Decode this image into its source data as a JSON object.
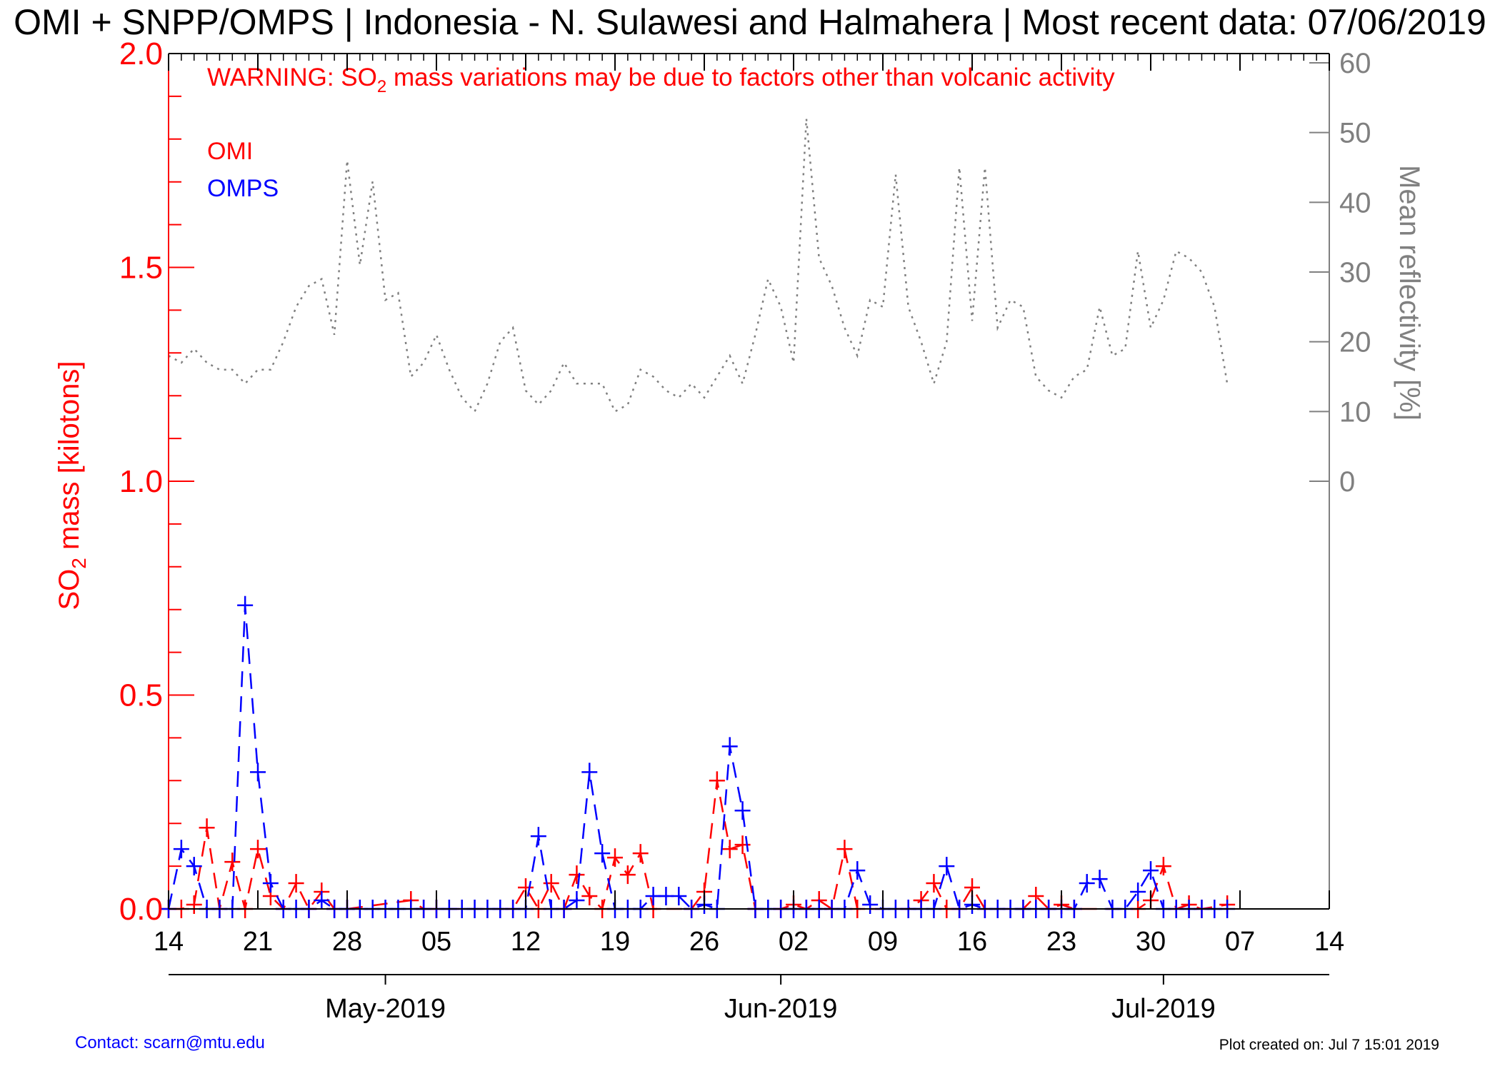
{
  "chart_data": {
    "type": "line",
    "title": "OMI + SNPP/OMPS | Indonesia - N. Sulawesi and Halmahera | Most recent data: 07/06/2019",
    "warning": {
      "prefix": "WARNING: SO",
      "subscript": "2",
      "suffix": " mass variations may be due to factors other than volcanic activity"
    },
    "left_axis": {
      "label_prefix": "SO",
      "label_subscript": "2",
      "label_suffix": " mass [kilotons]",
      "ylim": [
        0,
        2.0
      ],
      "tick_values": [
        0,
        0.5,
        1.0,
        1.5,
        2.0
      ],
      "tick_labels": [
        "0.0",
        "0.5",
        "1.0",
        "1.5",
        "2.0"
      ],
      "color": "#ff0000"
    },
    "right_axis": {
      "label": "Mean reflectivity [%]",
      "tick_values": [
        0,
        10,
        20,
        30,
        40,
        50,
        60
      ],
      "tick_labels": [
        "0",
        "10",
        "20",
        "30",
        "40",
        "50",
        "60"
      ],
      "color": "#808080"
    },
    "x_axis": {
      "start": "2019-04-14",
      "end": "2019-07-14",
      "tick_dates": [
        "2019-04-14",
        "2019-04-21",
        "2019-04-28",
        "2019-05-05",
        "2019-05-12",
        "2019-05-19",
        "2019-05-26",
        "2019-06-02",
        "2019-06-09",
        "2019-06-16",
        "2019-06-23",
        "2019-06-30",
        "2019-07-07",
        "2019-07-14"
      ],
      "tick_labels": [
        "14",
        "21",
        "28",
        "05",
        "12",
        "19",
        "26",
        "02",
        "09",
        "16",
        "23",
        "30",
        "07",
        "14"
      ],
      "month_tick_dates": [
        "2019-05-01",
        "2019-06-01",
        "2019-07-01"
      ],
      "month_labels": [
        "May-2019",
        "Jun-2019",
        "Jul-2019"
      ]
    },
    "legend": {
      "position": "top-left",
      "entries": [
        {
          "label": "OMI",
          "color": "#ff0000"
        },
        {
          "label": "OMPS",
          "color": "#0000ff"
        }
      ]
    },
    "series": [
      {
        "name": "OMI",
        "axis": "left",
        "color": "#ff0000",
        "style": "dashed",
        "marker": "plus",
        "points": [
          [
            "2019-04-14",
            0
          ],
          [
            "2019-04-15",
            0
          ],
          [
            "2019-04-16",
            0.01
          ],
          [
            "2019-04-17",
            0.19
          ],
          [
            "2019-04-18",
            0
          ],
          [
            "2019-04-19",
            0.11
          ],
          [
            "2019-04-20",
            0
          ],
          [
            "2019-04-21",
            0.14
          ],
          [
            "2019-04-22",
            0.03
          ],
          [
            "2019-04-23",
            0
          ],
          [
            "2019-04-24",
            0.06
          ],
          [
            "2019-04-25",
            0
          ],
          [
            "2019-04-26",
            0.04
          ],
          [
            "2019-04-27",
            0
          ],
          [
            "2019-04-28",
            0
          ],
          [
            "2019-05-03",
            0.02
          ],
          [
            "2019-05-04",
            0
          ],
          [
            "2019-05-05",
            0
          ],
          [
            "2019-05-11",
            0
          ],
          [
            "2019-05-12",
            0.05
          ],
          [
            "2019-05-13",
            0
          ],
          [
            "2019-05-14",
            0.06
          ],
          [
            "2019-05-15",
            0
          ],
          [
            "2019-05-16",
            0.08
          ],
          [
            "2019-05-17",
            0.03
          ],
          [
            "2019-05-18",
            0
          ],
          [
            "2019-05-19",
            0.12
          ],
          [
            "2019-05-20",
            0.08
          ],
          [
            "2019-05-21",
            0.13
          ],
          [
            "2019-05-22",
            0
          ],
          [
            "2019-05-25",
            0
          ],
          [
            "2019-05-26",
            0.04
          ],
          [
            "2019-05-27",
            0.3
          ],
          [
            "2019-05-28",
            0.14
          ],
          [
            "2019-05-29",
            0.15
          ],
          [
            "2019-05-30",
            0
          ],
          [
            "2019-06-01",
            0
          ],
          [
            "2019-06-02",
            0.01
          ],
          [
            "2019-06-03",
            0
          ],
          [
            "2019-06-04",
            0.02
          ],
          [
            "2019-06-05",
            0
          ],
          [
            "2019-06-06",
            0.14
          ],
          [
            "2019-06-07",
            0
          ],
          [
            "2019-06-11",
            0
          ],
          [
            "2019-06-12",
            0.02
          ],
          [
            "2019-06-13",
            0.06
          ],
          [
            "2019-06-14",
            0
          ],
          [
            "2019-06-15",
            0
          ],
          [
            "2019-06-16",
            0.05
          ],
          [
            "2019-06-17",
            0
          ],
          [
            "2019-06-20",
            0
          ],
          [
            "2019-06-21",
            0.03
          ],
          [
            "2019-06-22",
            0
          ],
          [
            "2019-06-23",
            0.01
          ],
          [
            "2019-06-24",
            0
          ],
          [
            "2019-06-29",
            0
          ],
          [
            "2019-06-30",
            0.02
          ],
          [
            "2019-07-01",
            0.1
          ],
          [
            "2019-07-02",
            0
          ],
          [
            "2019-07-03",
            0.01
          ],
          [
            "2019-07-04",
            0
          ],
          [
            "2019-07-06",
            0.01
          ]
        ]
      },
      {
        "name": "OMPS",
        "axis": "left",
        "color": "#0000ff",
        "style": "dashed",
        "marker": "plus",
        "points": [
          [
            "2019-04-14",
            0
          ],
          [
            "2019-04-15",
            0.14
          ],
          [
            "2019-04-16",
            0.1
          ],
          [
            "2019-04-17",
            0
          ],
          [
            "2019-04-18",
            0
          ],
          [
            "2019-04-19",
            0
          ],
          [
            "2019-04-20",
            0.71
          ],
          [
            "2019-04-21",
            0.32
          ],
          [
            "2019-04-22",
            0.06
          ],
          [
            "2019-04-23",
            0
          ],
          [
            "2019-04-24",
            0
          ],
          [
            "2019-04-25",
            0
          ],
          [
            "2019-04-26",
            0.02
          ],
          [
            "2019-04-27",
            0
          ],
          [
            "2019-04-28",
            0
          ],
          [
            "2019-04-29",
            0
          ],
          [
            "2019-04-30",
            0
          ],
          [
            "2019-05-01",
            0
          ],
          [
            "2019-05-02",
            0
          ],
          [
            "2019-05-03",
            0
          ],
          [
            "2019-05-04",
            0
          ],
          [
            "2019-05-05",
            0
          ],
          [
            "2019-05-06",
            0
          ],
          [
            "2019-05-07",
            0
          ],
          [
            "2019-05-08",
            0
          ],
          [
            "2019-05-09",
            0
          ],
          [
            "2019-05-10",
            0
          ],
          [
            "2019-05-11",
            0
          ],
          [
            "2019-05-12",
            0
          ],
          [
            "2019-05-13",
            0.17
          ],
          [
            "2019-05-14",
            0
          ],
          [
            "2019-05-15",
            0
          ],
          [
            "2019-05-16",
            0.02
          ],
          [
            "2019-05-17",
            0.32
          ],
          [
            "2019-05-18",
            0.13
          ],
          [
            "2019-05-19",
            0
          ],
          [
            "2019-05-20",
            0
          ],
          [
            "2019-05-21",
            0
          ],
          [
            "2019-05-22",
            0.03
          ],
          [
            "2019-05-23",
            0.03
          ],
          [
            "2019-05-24",
            0.03
          ],
          [
            "2019-05-25",
            0
          ],
          [
            "2019-05-26",
            0.01
          ],
          [
            "2019-05-27",
            0
          ],
          [
            "2019-05-28",
            0.38
          ],
          [
            "2019-05-29",
            0.23
          ],
          [
            "2019-05-30",
            0
          ],
          [
            "2019-05-31",
            0
          ],
          [
            "2019-06-01",
            0
          ],
          [
            "2019-06-02",
            0
          ],
          [
            "2019-06-03",
            0
          ],
          [
            "2019-06-04",
            0
          ],
          [
            "2019-06-05",
            0
          ],
          [
            "2019-06-06",
            0
          ],
          [
            "2019-06-07",
            0.09
          ],
          [
            "2019-06-08",
            0.01
          ],
          [
            "2019-06-09",
            0
          ],
          [
            "2019-06-10",
            0
          ],
          [
            "2019-06-11",
            0
          ],
          [
            "2019-06-12",
            0
          ],
          [
            "2019-06-13",
            0
          ],
          [
            "2019-06-14",
            0.1
          ],
          [
            "2019-06-15",
            0
          ],
          [
            "2019-06-16",
            0.01
          ],
          [
            "2019-06-17",
            0
          ],
          [
            "2019-06-18",
            0
          ],
          [
            "2019-06-19",
            0
          ],
          [
            "2019-06-20",
            0
          ],
          [
            "2019-06-21",
            0
          ],
          [
            "2019-06-22",
            0
          ],
          [
            "2019-06-23",
            0
          ],
          [
            "2019-06-24",
            0
          ],
          [
            "2019-06-25",
            0.06
          ],
          [
            "2019-06-26",
            0.07
          ],
          [
            "2019-06-27",
            0
          ],
          [
            "2019-06-28",
            0
          ],
          [
            "2019-06-29",
            0.04
          ],
          [
            "2019-06-30",
            0.09
          ],
          [
            "2019-07-01",
            0
          ],
          [
            "2019-07-02",
            0
          ],
          [
            "2019-07-03",
            0
          ],
          [
            "2019-07-04",
            0
          ],
          [
            "2019-07-05",
            0
          ],
          [
            "2019-07-06",
            0
          ]
        ]
      },
      {
        "name": "Mean reflectivity",
        "axis": "right",
        "color": "#808080",
        "style": "dotted",
        "marker": "none",
        "points": [
          [
            "2019-04-14",
            18
          ],
          [
            "2019-04-15",
            17
          ],
          [
            "2019-04-16",
            19
          ],
          [
            "2019-04-17",
            17
          ],
          [
            "2019-04-18",
            16
          ],
          [
            "2019-04-19",
            16
          ],
          [
            "2019-04-20",
            14
          ],
          [
            "2019-04-21",
            16
          ],
          [
            "2019-04-22",
            16
          ],
          [
            "2019-04-23",
            20
          ],
          [
            "2019-04-24",
            25
          ],
          [
            "2019-04-25",
            28
          ],
          [
            "2019-04-26",
            29
          ],
          [
            "2019-04-27",
            21
          ],
          [
            "2019-04-28",
            46
          ],
          [
            "2019-04-29",
            31
          ],
          [
            "2019-04-30",
            43
          ],
          [
            "2019-05-01",
            26
          ],
          [
            "2019-05-02",
            27
          ],
          [
            "2019-05-03",
            15
          ],
          [
            "2019-05-04",
            17
          ],
          [
            "2019-05-05",
            21
          ],
          [
            "2019-05-06",
            16
          ],
          [
            "2019-05-07",
            12
          ],
          [
            "2019-05-08",
            10
          ],
          [
            "2019-05-09",
            14
          ],
          [
            "2019-05-10",
            20
          ],
          [
            "2019-05-11",
            22
          ],
          [
            "2019-05-12",
            13
          ],
          [
            "2019-05-13",
            11
          ],
          [
            "2019-05-14",
            13
          ],
          [
            "2019-05-15",
            17
          ],
          [
            "2019-05-16",
            14
          ],
          [
            "2019-05-17",
            14
          ],
          [
            "2019-05-18",
            14
          ],
          [
            "2019-05-19",
            10
          ],
          [
            "2019-05-20",
            11
          ],
          [
            "2019-05-21",
            16
          ],
          [
            "2019-05-22",
            15
          ],
          [
            "2019-05-23",
            13
          ],
          [
            "2019-05-24",
            12
          ],
          [
            "2019-05-25",
            14
          ],
          [
            "2019-05-26",
            12
          ],
          [
            "2019-05-27",
            15
          ],
          [
            "2019-05-28",
            18
          ],
          [
            "2019-05-29",
            14
          ],
          [
            "2019-05-30",
            21
          ],
          [
            "2019-05-31",
            29
          ],
          [
            "2019-06-01",
            25
          ],
          [
            "2019-06-02",
            17
          ],
          [
            "2019-06-03",
            52
          ],
          [
            "2019-06-04",
            32
          ],
          [
            "2019-06-05",
            28
          ],
          [
            "2019-06-06",
            22
          ],
          [
            "2019-06-07",
            18
          ],
          [
            "2019-06-08",
            26
          ],
          [
            "2019-06-09",
            25
          ],
          [
            "2019-06-10",
            44
          ],
          [
            "2019-06-11",
            25
          ],
          [
            "2019-06-12",
            20
          ],
          [
            "2019-06-13",
            14
          ],
          [
            "2019-06-14",
            20
          ],
          [
            "2019-06-15",
            45
          ],
          [
            "2019-06-16",
            23
          ],
          [
            "2019-06-17",
            45
          ],
          [
            "2019-06-18",
            22
          ],
          [
            "2019-06-19",
            26
          ],
          [
            "2019-06-20",
            25
          ],
          [
            "2019-06-21",
            15
          ],
          [
            "2019-06-22",
            13
          ],
          [
            "2019-06-23",
            12
          ],
          [
            "2019-06-24",
            15
          ],
          [
            "2019-06-25",
            16
          ],
          [
            "2019-06-26",
            25
          ],
          [
            "2019-06-27",
            18
          ],
          [
            "2019-06-28",
            19
          ],
          [
            "2019-06-29",
            33
          ],
          [
            "2019-06-30",
            22
          ],
          [
            "2019-07-01",
            26
          ],
          [
            "2019-07-02",
            33
          ],
          [
            "2019-07-03",
            32
          ],
          [
            "2019-07-04",
            30
          ],
          [
            "2019-07-05",
            25
          ],
          [
            "2019-07-06",
            14
          ]
        ]
      }
    ],
    "grid": false
  },
  "footer": {
    "contact": "Contact: scarn@mtu.edu",
    "created": "Plot created on: Jul  7 15:01 2019"
  }
}
